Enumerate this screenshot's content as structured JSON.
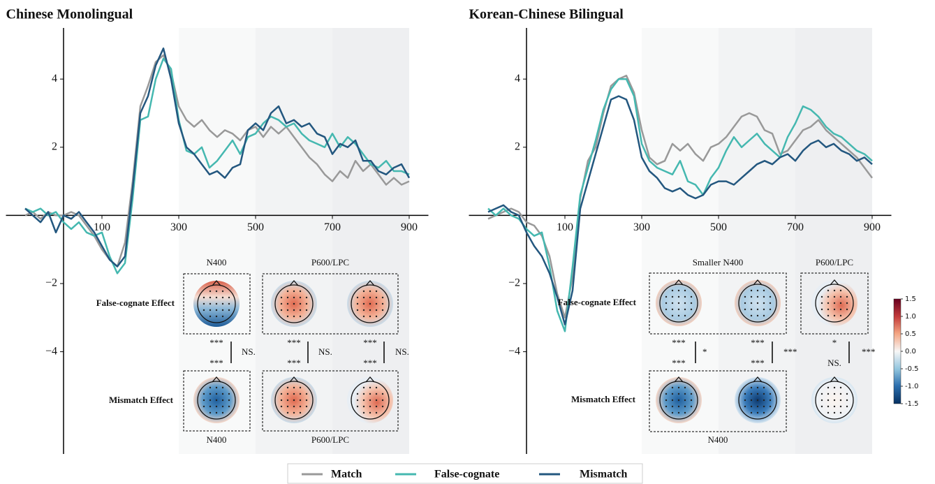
{
  "chart_data": [
    {
      "type": "line",
      "title": "Chinese Monolingual",
      "x": [
        -100,
        -80,
        -60,
        -40,
        -20,
        0,
        20,
        40,
        60,
        80,
        100,
        120,
        140,
        160,
        180,
        200,
        220,
        240,
        260,
        280,
        300,
        320,
        340,
        360,
        380,
        400,
        420,
        440,
        460,
        480,
        500,
        520,
        540,
        560,
        580,
        600,
        620,
        640,
        660,
        680,
        700,
        720,
        740,
        760,
        780,
        800,
        820,
        840,
        860,
        880,
        900
      ],
      "series": [
        {
          "name": "Match",
          "color": "#999999",
          "values": [
            0,
            0.1,
            -0.1,
            0.1,
            0,
            0,
            0.1,
            0,
            -0.3,
            -0.6,
            -1.0,
            -1.3,
            -1.5,
            -0.8,
            1.0,
            3.2,
            3.8,
            4.5,
            4.7,
            4.2,
            3.2,
            2.8,
            2.6,
            2.8,
            2.5,
            2.3,
            2.5,
            2.4,
            2.2,
            2.5,
            2.6,
            2.3,
            2.6,
            2.4,
            2.6,
            2.3,
            2.0,
            1.7,
            1.5,
            1.2,
            1.0,
            1.3,
            1.1,
            1.6,
            1.3,
            1.5,
            1.2,
            0.9,
            1.1,
            0.9,
            1.0
          ]
        },
        {
          "name": "False-cognate",
          "color": "#45b8b0",
          "values": [
            0.2,
            0.1,
            0.2,
            0,
            0.1,
            -0.2,
            -0.4,
            -0.2,
            -0.5,
            -0.6,
            -0.5,
            -1.2,
            -1.7,
            -1.4,
            0.5,
            2.8,
            2.9,
            4.0,
            4.6,
            4.3,
            2.8,
            1.9,
            1.8,
            2.0,
            1.4,
            1.6,
            1.9,
            2.2,
            1.8,
            2.3,
            2.4,
            2.7,
            2.9,
            2.8,
            2.6,
            2.7,
            2.4,
            2.2,
            2.1,
            2.0,
            2.4,
            2.0,
            2.3,
            2.1,
            1.8,
            1.5,
            1.4,
            1.6,
            1.3,
            1.3,
            1.2
          ]
        },
        {
          "name": "Mismatch",
          "color": "#23577f",
          "values": [
            0.2,
            0,
            -0.2,
            0.1,
            -0.5,
            0,
            -0.1,
            0.1,
            -0.2,
            -0.5,
            -0.9,
            -1.3,
            -1.5,
            -1.2,
            0.8,
            3.0,
            3.5,
            4.4,
            4.9,
            4.0,
            2.7,
            2.0,
            1.8,
            1.5,
            1.2,
            1.3,
            1.1,
            1.4,
            1.5,
            2.5,
            2.7,
            2.5,
            3.0,
            3.2,
            2.7,
            2.8,
            2.6,
            2.7,
            2.4,
            2.3,
            1.8,
            2.1,
            2.0,
            2.2,
            1.6,
            1.6,
            1.3,
            1.2,
            1.4,
            1.5,
            1.1
          ]
        }
      ],
      "xlim": [
        -150,
        950
      ],
      "ylim": [
        -7,
        5.5
      ],
      "xticks": [
        100,
        300,
        500,
        700,
        900
      ],
      "yticks": [
        {
          "value": -4,
          "label": "−4"
        },
        {
          "value": -2,
          "label": "−2"
        },
        2,
        4
      ],
      "shaded_regions": [
        [
          300,
          500
        ],
        [
          500,
          700
        ],
        [
          700,
          900
        ]
      ],
      "shade_colors": [
        "#f8f9f9",
        "#f2f3f4",
        "#eeeff1"
      ],
      "topomaps": {
        "row_labels": [
          "False-cognate Effect",
          "Mismatch Effect"
        ],
        "windows_top": [
          "N400",
          "P600/LPC"
        ],
        "windows_bottom": [
          "N400",
          "P600/LPC"
        ],
        "significance": [
          {
            "upper": "***",
            "lower": "***",
            "difference": "NS."
          },
          {
            "upper": "***",
            "lower": "***",
            "difference": "NS."
          },
          {
            "upper": "***",
            "lower": "***",
            "difference": "NS."
          }
        ]
      }
    },
    {
      "type": "line",
      "title": "Korean-Chinese Bilingual",
      "x": [
        -100,
        -80,
        -60,
        -40,
        -20,
        0,
        20,
        40,
        60,
        80,
        100,
        120,
        140,
        160,
        180,
        200,
        220,
        240,
        260,
        280,
        300,
        320,
        340,
        360,
        380,
        400,
        420,
        440,
        460,
        480,
        500,
        520,
        540,
        560,
        580,
        600,
        620,
        640,
        660,
        680,
        700,
        720,
        740,
        760,
        780,
        800,
        820,
        840,
        860,
        880,
        900
      ],
      "series": [
        {
          "name": "Match",
          "color": "#999999",
          "values": [
            -0.1,
            0,
            0.1,
            0.2,
            0.1,
            -0.2,
            -0.3,
            -0.6,
            -1.2,
            -2.3,
            -3.0,
            -1.8,
            0.5,
            1.6,
            2.0,
            3.0,
            3.8,
            4.0,
            4.1,
            3.6,
            2.5,
            1.7,
            1.5,
            1.6,
            2.1,
            1.9,
            2.1,
            1.8,
            1.6,
            2.0,
            2.1,
            2.3,
            2.6,
            2.9,
            3.0,
            2.9,
            2.5,
            2.4,
            1.8,
            1.9,
            2.2,
            2.5,
            2.6,
            2.8,
            2.5,
            2.3,
            2.1,
            1.9,
            1.7,
            1.4,
            1.1
          ]
        },
        {
          "name": "False-cognate",
          "color": "#45b8b0",
          "values": [
            0.2,
            0,
            0.2,
            0,
            -0.1,
            -0.4,
            -0.6,
            -0.5,
            -1.5,
            -2.8,
            -3.4,
            -1.5,
            0.6,
            1.4,
            2.2,
            3.1,
            3.7,
            4.0,
            4.0,
            3.5,
            2.1,
            1.6,
            1.4,
            1.3,
            1.2,
            1.6,
            1.0,
            0.9,
            0.6,
            1.1,
            1.4,
            1.9,
            2.3,
            2.0,
            2.2,
            2.4,
            2.1,
            1.9,
            1.7,
            2.3,
            2.7,
            3.2,
            3.1,
            2.9,
            2.6,
            2.4,
            2.3,
            2.1,
            1.9,
            1.8,
            1.6
          ]
        },
        {
          "name": "Mismatch",
          "color": "#23577f",
          "values": [
            0.1,
            0.2,
            0.3,
            0.1,
            0,
            -0.5,
            -0.9,
            -1.2,
            -1.7,
            -2.4,
            -3.2,
            -2.2,
            0.2,
            1.0,
            1.8,
            2.6,
            3.4,
            3.5,
            3.4,
            2.8,
            1.7,
            1.3,
            1.1,
            0.8,
            0.7,
            0.8,
            0.6,
            0.5,
            0.6,
            0.9,
            1.0,
            1.0,
            0.9,
            1.1,
            1.3,
            1.5,
            1.6,
            1.5,
            1.7,
            1.8,
            1.6,
            1.9,
            2.1,
            2.2,
            2.0,
            2.1,
            1.9,
            1.8,
            1.6,
            1.7,
            1.5
          ]
        }
      ],
      "xlim": [
        -150,
        950
      ],
      "ylim": [
        -7,
        5.5
      ],
      "xticks": [
        100,
        300,
        500,
        700,
        900
      ],
      "yticks": [
        {
          "value": -4,
          "label": "−4"
        },
        {
          "value": -2,
          "label": "−2"
        },
        2,
        4
      ],
      "shaded_regions": [
        [
          300,
          500
        ],
        [
          500,
          700
        ],
        [
          700,
          900
        ]
      ],
      "shade_colors": [
        "#f8f9f9",
        "#f2f3f4",
        "#eeeff1"
      ],
      "topomaps": {
        "row_labels": [
          "False-cognate Effect",
          "Mismatch Effect"
        ],
        "windows_top": [
          "Smaller N400",
          "P600/LPC"
        ],
        "windows_bottom": [
          "N400"
        ],
        "significance": [
          {
            "upper": "***",
            "lower": "***",
            "difference": "*"
          },
          {
            "upper": "***",
            "lower": "***",
            "difference": "***"
          },
          {
            "upper": "*",
            "lower": "NS.",
            "difference": "***"
          }
        ]
      }
    }
  ],
  "colorbar": {
    "lim": [
      -1.5,
      1.5
    ],
    "ticks": [
      1.5,
      {
        "value": 1.0,
        "label": "1.0"
      },
      0.5,
      {
        "value": 0.0,
        "label": "0.0"
      },
      -0.5,
      {
        "value": -1.0,
        "label": "-1.0"
      },
      -1.5
    ]
  }
}
